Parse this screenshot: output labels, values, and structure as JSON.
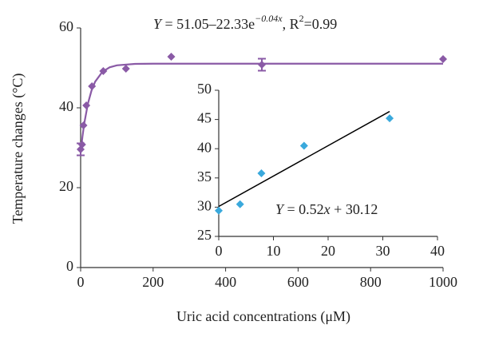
{
  "chart_data": [
    {
      "type": "scatter",
      "equation": [
        "Y",
        " = 51.05–22.33e",
        "−0.04x",
        ", R",
        "2",
        "=0.99"
      ],
      "x_label": "Uric acid concentrations (μM)",
      "y_label": "Temperature changes (°C)",
      "xlim": [
        0,
        1000
      ],
      "xticks": [
        0,
        200,
        400,
        600,
        800,
        1000
      ],
      "ylim": [
        0,
        60
      ],
      "yticks": [
        0,
        20,
        40,
        60
      ],
      "points": {
        "color": "#8a5aa6",
        "x": [
          0,
          3.9,
          7.8,
          15.6,
          31.25,
          62.5,
          125,
          250,
          500,
          1000
        ],
        "values": [
          29.6,
          30.8,
          35.6,
          40.6,
          45.4,
          49.2,
          49.8,
          52.8,
          50.8,
          52.2
        ],
        "errors": [
          1.5,
          null,
          null,
          null,
          null,
          null,
          null,
          null,
          1.5,
          null
        ]
      },
      "fit": {
        "color": "#8a5aa6",
        "x": [
          0,
          5,
          10,
          20,
          30,
          40,
          60,
          80,
          100,
          150,
          200,
          1000
        ],
        "values": [
          28.72,
          32.77,
          36.08,
          41.02,
          44.32,
          46.54,
          49.02,
          50.14,
          50.64,
          51.0,
          51.05,
          51.05
        ]
      }
    },
    {
      "type": "scatter",
      "equation": [
        "Y",
        " = 0.52",
        "x",
        " + 30.12"
      ],
      "xlim": [
        0,
        40
      ],
      "xticks": [
        0,
        10,
        20,
        30,
        40
      ],
      "ylim": [
        25,
        50
      ],
      "yticks": [
        25,
        30,
        35,
        40,
        45,
        50
      ],
      "points": {
        "color": "#3aa9dc",
        "x": [
          0,
          3.9,
          7.8,
          15.6,
          31.25
        ],
        "values": [
          29.4,
          30.5,
          35.8,
          40.5,
          45.2
        ]
      },
      "fit": {
        "color": "#000000",
        "x": [
          0,
          31.25
        ],
        "values": [
          30.12,
          46.37
        ]
      }
    }
  ]
}
